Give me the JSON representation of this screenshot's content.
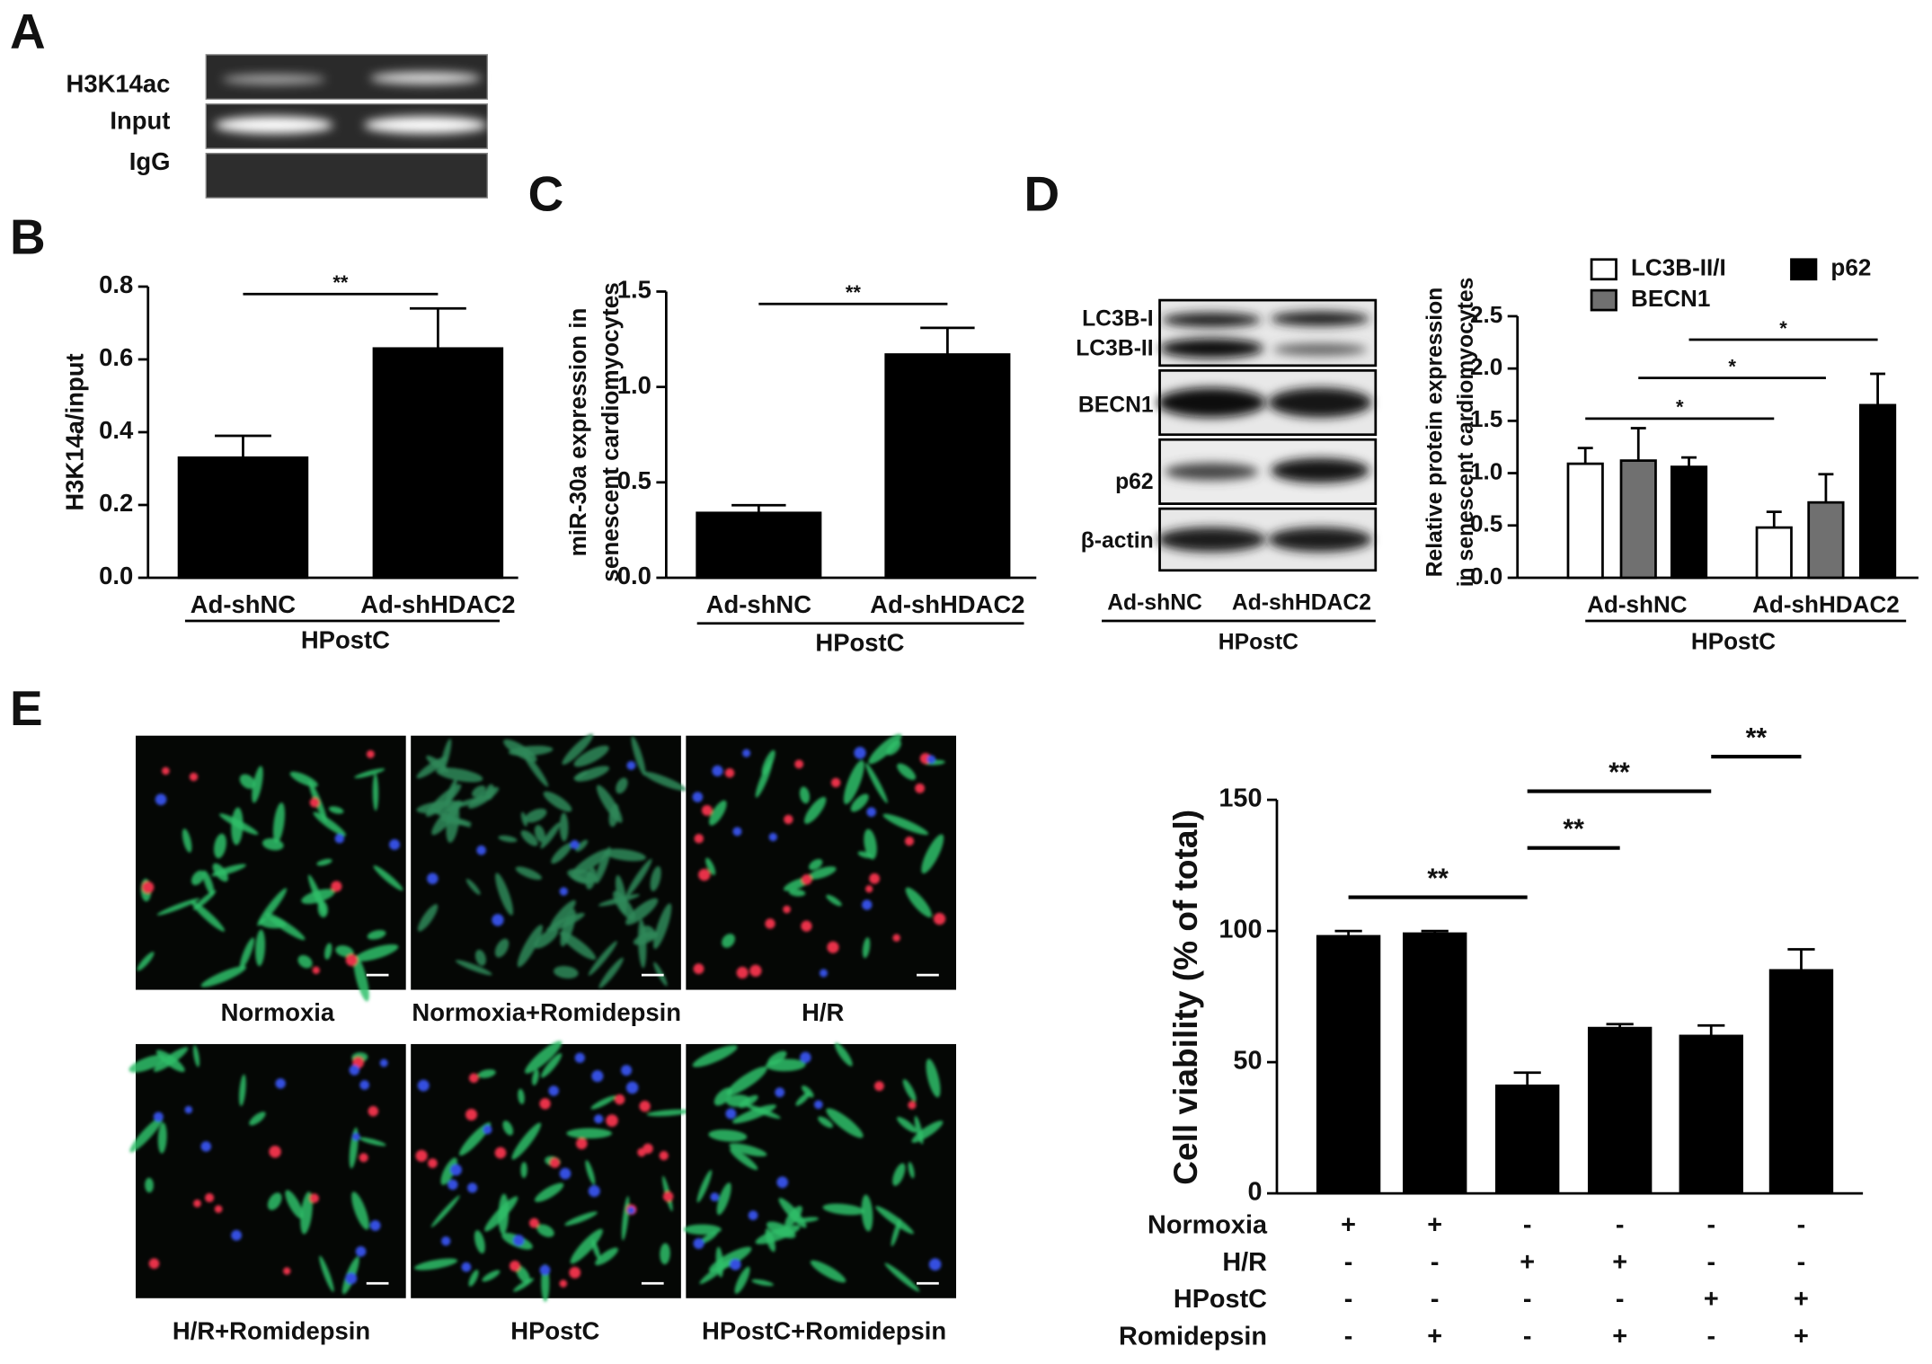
{
  "panel_labels": [
    "A",
    "B",
    "C",
    "D",
    "E"
  ],
  "gel": {
    "rows": [
      "H3K14ac",
      "Input",
      "IgG"
    ]
  },
  "blot": {
    "rows": [
      "LC3B-I",
      "LC3B-II",
      "BECN1",
      "p62",
      "β-actin"
    ],
    "lanes": [
      "Ad-shNC",
      "Ad-shHDAC2"
    ],
    "group": "HPostC"
  },
  "micrographs": {
    "captions": [
      "Normoxia",
      "Normoxia+Romidepsin",
      "H/R",
      "H/R+Romidepsin",
      "HPostC",
      "HPostC+Romidepsin"
    ]
  },
  "chart_data": [
    {
      "type": "bar",
      "y_label": [
        "H3K14a/input"
      ],
      "categories": [
        "Ad-shNC",
        "Ad-shHDAC2"
      ],
      "values": [
        0.33,
        0.63
      ],
      "errors": [
        0.06,
        0.11
      ],
      "color": "#000000",
      "ylim": [
        0,
        0.8
      ],
      "yticks": [
        {
          "value": 0,
          "label": "0.0"
        },
        0.2,
        0.4,
        0.6,
        0.8
      ],
      "group_label": "HPostC",
      "significance": [
        {
          "from": 0,
          "to": 1,
          "label": "**"
        }
      ]
    },
    {
      "type": "bar",
      "y_label": [
        "miR-30a expression in",
        "senescent cardiomyocytes"
      ],
      "categories": [
        "Ad-shNC",
        "Ad-shHDAC2"
      ],
      "values": [
        0.34,
        1.17
      ],
      "errors": [
        0.04,
        0.14
      ],
      "color": "#000000",
      "ylim": [
        0,
        1.5
      ],
      "yticks": [
        {
          "value": 0,
          "label": "0.0"
        },
        0.5,
        {
          "value": 1,
          "label": "1.0"
        },
        1.5
      ],
      "group_label": "HPostC",
      "significance": [
        {
          "from": 0,
          "to": 1,
          "label": "**"
        }
      ]
    },
    {
      "type": "grouped_bar",
      "y_label": [
        "Relative protein expression",
        "in senescent cardiomyocytes"
      ],
      "categories": [
        "Ad-shNC",
        "Ad-shHDAC2"
      ],
      "series": [
        {
          "name": "LC3B-II/I",
          "color": "#ffffff",
          "values": [
            1.09,
            0.48
          ],
          "errors": [
            0.15,
            0.15
          ]
        },
        {
          "name": "BECN1",
          "color": "#707070",
          "values": [
            1.12,
            0.72
          ],
          "errors": [
            0.31,
            0.27
          ]
        },
        {
          "name": "p62",
          "color": "#000000",
          "values": [
            1.06,
            1.65
          ],
          "errors": [
            0.09,
            0.3
          ]
        }
      ],
      "ylim": [
        0,
        2.5
      ],
      "yticks": [
        {
          "value": 0,
          "label": "0.0"
        },
        0.5,
        {
          "value": 1,
          "label": "1.0"
        },
        1.5,
        {
          "value": 2,
          "label": "2.0"
        },
        2.5
      ],
      "group_label": "HPostC",
      "significance": [
        {
          "series": 0,
          "from": 0,
          "to": 1,
          "label": "*"
        },
        {
          "series": 1,
          "from": 0,
          "to": 1,
          "label": "*"
        },
        {
          "series": 2,
          "from": 0,
          "to": 1,
          "label": "*"
        }
      ]
    },
    {
      "type": "bar",
      "y_label": [
        "Cell viability (% of total)"
      ],
      "values": [
        98,
        99,
        41,
        63,
        60,
        85
      ],
      "errors": [
        2,
        1,
        5,
        1.5,
        4,
        8
      ],
      "color": "#000000",
      "ylim": [
        0,
        150
      ],
      "yticks": [
        0,
        50,
        100,
        150
      ],
      "conditions": [
        {
          "name": "Normoxia",
          "marks": [
            "+",
            "+",
            "-",
            "-",
            "-",
            "-"
          ]
        },
        {
          "name": "H/R",
          "marks": [
            "-",
            "-",
            "+",
            "+",
            "-",
            "-"
          ]
        },
        {
          "name": "HPostC",
          "marks": [
            "-",
            "-",
            "-",
            "-",
            "+",
            "+"
          ]
        },
        {
          "name": "Romidepsin",
          "marks": [
            "-",
            "+",
            "-",
            "+",
            "-",
            "+"
          ]
        }
      ],
      "significance": [
        {
          "from": 0,
          "to": 2,
          "label": "**"
        },
        {
          "from": 2,
          "to": 3,
          "label": "**"
        },
        {
          "from": 2,
          "to": 4,
          "label": "**"
        },
        {
          "from": 4,
          "to": 5,
          "label": "**"
        }
      ]
    }
  ]
}
